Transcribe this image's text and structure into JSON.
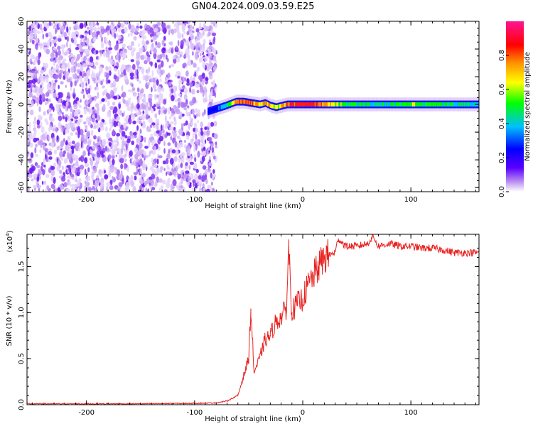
{
  "title": "GN04.2024.009.03.59.E25",
  "chart_data": [
    {
      "type": "heatmap",
      "title": "GN04.2024.009.03.59.E25",
      "xlabel": "Height of straight line (km)",
      "ylabel": "Frequency (Hz)",
      "xlim": [
        -255,
        163
      ],
      "ylim": [
        -63,
        60
      ],
      "xticks": [
        -200,
        -100,
        0,
        100
      ],
      "xtick_labels": [
        "-200",
        "-100",
        "0",
        "100"
      ],
      "yticks": [
        -60,
        -40,
        -20,
        0,
        20,
        40,
        60
      ],
      "ytick_labels": [
        "-60",
        "-40",
        "-20",
        "0",
        "20",
        "40",
        "60"
      ],
      "noise_region_x": [
        -255,
        -80
      ],
      "signal_ridge": {
        "x": [
          -88,
          -80,
          -72,
          -62,
          -55,
          -48,
          -40,
          -35,
          -30,
          -25,
          -20,
          -15,
          -10,
          -5,
          0,
          20,
          40,
          60,
          80,
          100,
          120,
          140,
          163
        ],
        "frequency_hz": [
          -5,
          -3,
          -1,
          2,
          2,
          1,
          0,
          1,
          -1,
          -2,
          -1,
          0,
          0,
          0,
          0,
          0,
          0,
          0,
          0,
          0,
          0,
          0,
          0
        ],
        "amplitude": [
          0.3,
          0.35,
          0.5,
          0.8,
          0.9,
          0.85,
          0.7,
          0.8,
          0.7,
          0.6,
          0.75,
          0.85,
          0.9,
          0.9,
          0.95,
          0.8,
          0.55,
          0.5,
          0.5,
          0.6,
          0.55,
          0.5,
          0.45
        ]
      },
      "colorbar": {
        "label": "Normalized spectral amplitude",
        "range": [
          0,
          1
        ],
        "ticks": [
          0.0,
          0.2,
          0.4,
          0.6,
          0.8
        ],
        "tick_labels": [
          "0.0",
          "0.2",
          "0.4",
          "0.6",
          "0.8"
        ],
        "colors": [
          "#ffffff",
          "#8a2be2",
          "#0000ff",
          "#00bfff",
          "#00ff00",
          "#ffff00",
          "#ff8c00",
          "#ff0000",
          "#ff1493"
        ]
      }
    },
    {
      "type": "line",
      "xlabel": "Height of straight line (km)",
      "ylabel": "SNR (10 * v/v)",
      "scale_label": "(x10",
      "scale_exponent": "4",
      "scale_suffix": ")",
      "xlim": [
        -255,
        163
      ],
      "ylim": [
        0,
        1.85
      ],
      "xticks": [
        -200,
        -100,
        0,
        100
      ],
      "xtick_labels": [
        "-200",
        "-100",
        "0",
        "100"
      ],
      "yticks": [
        0.0,
        0.5,
        1.0,
        1.5
      ],
      "ytick_labels": [
        "0.0",
        "0.5",
        "1.0",
        "1.5"
      ],
      "series": [
        {
          "color": "#e8211f",
          "x": [
            -255,
            -200,
            -150,
            -100,
            -80,
            -70,
            -60,
            -55,
            -50,
            -48,
            -45,
            -40,
            -35,
            -30,
            -25,
            -20,
            -15,
            -13,
            -10,
            -5,
            0,
            5,
            10,
            15,
            20,
            25,
            30,
            33,
            40,
            50,
            60,
            65,
            70,
            80,
            90,
            100,
            110,
            120,
            130,
            140,
            150,
            163
          ],
          "y": [
            0.01,
            0.01,
            0.01,
            0.015,
            0.02,
            0.04,
            0.1,
            0.3,
            0.5,
            1.04,
            0.35,
            0.5,
            0.7,
            0.75,
            0.9,
            0.95,
            1.05,
            1.71,
            1.0,
            1.1,
            1.15,
            1.3,
            1.4,
            1.5,
            1.6,
            1.62,
            1.66,
            1.8,
            1.72,
            1.72,
            1.75,
            1.83,
            1.72,
            1.75,
            1.72,
            1.72,
            1.7,
            1.7,
            1.68,
            1.65,
            1.65,
            1.65
          ]
        }
      ]
    }
  ]
}
